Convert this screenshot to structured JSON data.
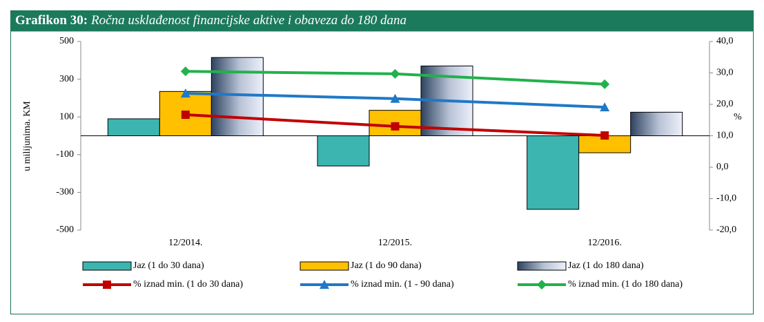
{
  "chart_data": {
    "type": "bar_line",
    "title_label": "Grafikon 30:",
    "title": "Ročna usklađenost financijske aktive i obaveza do 180 dana",
    "y_label": "u milijunima. KM",
    "y2_label": "%",
    "categories": [
      "12/2014.",
      "12/2015.",
      "12/2016."
    ],
    "ylim": [
      -500,
      500
    ],
    "yticks": [
      500,
      300,
      100,
      -100,
      -300,
      -500
    ],
    "y2lim": [
      -20,
      40
    ],
    "y2ticks": [
      {
        "value": 40,
        "label": "40,0"
      },
      {
        "value": 30,
        "label": "30,0"
      },
      {
        "value": 20,
        "label": "20,0"
      },
      {
        "value": 10,
        "label": "10,0"
      },
      {
        "value": 0,
        "label": "0,0"
      },
      {
        "value": -10,
        "label": "-10,0"
      },
      {
        "value": -20,
        "label": "-20,0"
      }
    ],
    "series": [
      {
        "name": "Jaz (1 do 30 dana)",
        "type": "bar",
        "color": "#3cb4b0",
        "values": [
          90,
          -160,
          -390
        ]
      },
      {
        "name": "Jaz (1 do 90 dana)",
        "type": "bar",
        "color": "#ffc000",
        "values": [
          235,
          135,
          -90
        ]
      },
      {
        "name": "Jaz (1 do 180 dana)",
        "type": "bar",
        "color": "#2e4360",
        "gradient": true,
        "values": [
          415,
          370,
          125
        ]
      },
      {
        "name": "% iznad min. (1 do 30 dana)",
        "type": "line",
        "axis": "y2",
        "marker": "square",
        "color": "#c00000",
        "values": [
          16.7,
          13.0,
          10.1
        ]
      },
      {
        "name": "% iznad min. (1 - 90 dana)",
        "type": "line",
        "axis": "y2",
        "marker": "triangle",
        "color": "#1f78c8",
        "values": [
          23.5,
          21.8,
          19.1
        ]
      },
      {
        "name": "% iznad min. (1 do 180 dana)",
        "type": "line",
        "axis": "y2",
        "marker": "diamond",
        "color": "#22b14c",
        "values": [
          30.5,
          29.7,
          26.4
        ]
      }
    ]
  }
}
